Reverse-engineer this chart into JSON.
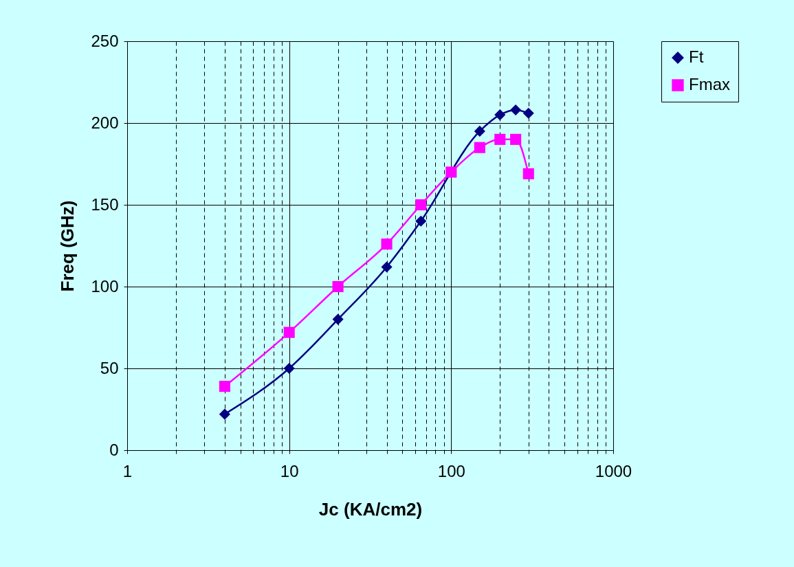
{
  "chart_data": {
    "type": "line",
    "xlabel": "Jc (KA/cm2)",
    "ylabel": "Freq (GHz)",
    "log": "x",
    "grid": true,
    "legend": "right",
    "line_style": "solid",
    "x": [
      4,
      10,
      20,
      40,
      65,
      100,
      150,
      200,
      250,
      300
    ],
    "xlim": [
      1,
      1000
    ],
    "xticks": [
      1,
      {
        "value": 2,
        "label": null
      },
      {
        "value": 3,
        "label": null
      },
      {
        "value": 4,
        "label": null
      },
      {
        "value": 5,
        "label": null
      },
      {
        "value": 6,
        "label": null
      },
      {
        "value": 7,
        "label": null
      },
      {
        "value": 8,
        "label": null
      },
      {
        "value": 9,
        "label": null
      },
      10,
      {
        "value": 20,
        "label": null
      },
      {
        "value": 30,
        "label": null
      },
      {
        "value": 40,
        "label": null
      },
      {
        "value": 50,
        "label": null
      },
      {
        "value": 60,
        "label": null
      },
      {
        "value": 70,
        "label": null
      },
      {
        "value": 80,
        "label": null
      },
      {
        "value": 90,
        "label": null
      },
      100,
      {
        "value": 200,
        "label": null
      },
      {
        "value": 300,
        "label": null
      },
      {
        "value": 400,
        "label": null
      },
      {
        "value": 500,
        "label": null
      },
      {
        "value": 600,
        "label": null
      },
      {
        "value": 700,
        "label": null
      },
      {
        "value": 800,
        "label": null
      },
      {
        "value": 900,
        "label": null
      },
      1000
    ],
    "ylim": [
      0,
      250
    ],
    "yticks": [
      0,
      50,
      100,
      150,
      200,
      250
    ],
    "series": [
      {
        "name": "Ft",
        "color": "#000080",
        "marker": "diamond",
        "values": [
          22,
          50,
          80,
          112,
          140,
          null,
          195,
          205,
          208,
          206
        ]
      },
      {
        "name": "Fmax",
        "color": "#ff00ff",
        "marker": "square",
        "values": [
          39,
          72,
          100,
          126,
          150,
          170,
          185,
          190,
          190,
          169
        ]
      }
    ]
  }
}
